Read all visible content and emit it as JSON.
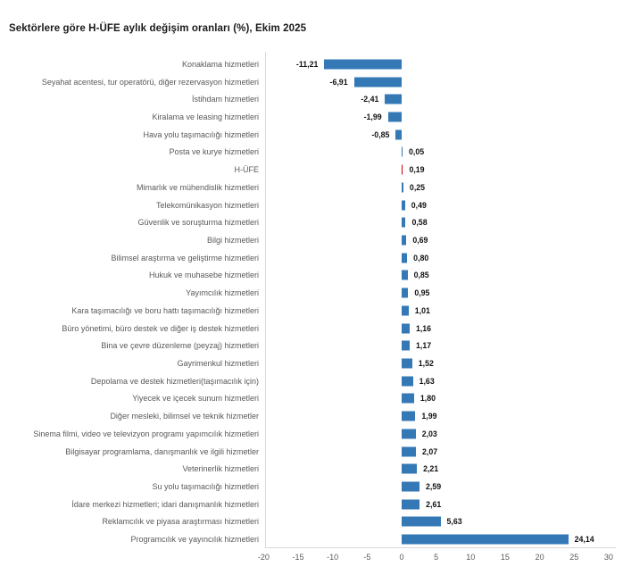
{
  "chart_data": {
    "type": "bar",
    "orientation": "horizontal",
    "title": "Sektörlere göre H-ÜFE aylık değişim oranları (%), Ekim 2025",
    "xlabel": "",
    "ylabel": "",
    "xlim": [
      -20,
      30
    ],
    "x_ticks": [
      -20,
      -15,
      -10,
      -5,
      0,
      5,
      10,
      15,
      20,
      25,
      30
    ],
    "grid": false,
    "legend": false,
    "categories": [
      "Konaklama hizmetleri",
      "Seyahat acentesi, tur operatörü, diğer rezervasyon hizmetleri",
      "İstihdam hizmetleri",
      "Kiralama ve leasing hizmetleri",
      "Hava yolu taşımacılığı hizmetleri",
      "Posta ve kurye hizmetleri",
      "H-ÜFE",
      "Mimarlık ve mühendislik hizmetleri",
      "Telekomünikasyon hizmetleri",
      "Güvenlik ve soruşturma hizmetleri",
      "Bilgi hizmetleri",
      "Bilimsel araştırma ve geliştirme hizmetleri",
      "Hukuk ve muhasebe hizmetleri",
      "Yayımcılık hizmetleri",
      "Kara taşımacılığı ve boru hattı taşımacılığı hizmetleri",
      "Büro yönetimi, büro destek ve diğer iş destek hizmetleri",
      "Bina ve çevre düzenleme (peyzaj) hizmetleri",
      "Gayrimenkul hizmetleri",
      "Depolama ve destek hizmetleri(taşımacılık için)",
      "Yiyecek ve içecek sunum hizmetleri",
      "Diğer mesleki, bilimsel ve teknik hizmetler",
      "Sinema filmi, video ve televizyon programı yapımcılık hizmetleri",
      "Bilgisayar programlama, danışmanlık ve ilgili hizmetler",
      "Veterinerlik hizmetleri",
      "Su yolu taşımacılığı hizmetleri",
      "İdare merkezi hizmetleri; idari danışmanlık hizmetleri",
      "Reklamcılık ve piyasa araştırması hizmetleri",
      "Programcılık ve yayıncılık hizmetleri"
    ],
    "values": [
      -11.21,
      -6.91,
      -2.41,
      -1.99,
      -0.85,
      0.05,
      0.19,
      0.25,
      0.49,
      0.58,
      0.69,
      0.8,
      0.85,
      0.95,
      1.01,
      1.16,
      1.17,
      1.52,
      1.63,
      1.8,
      1.99,
      2.03,
      2.07,
      2.21,
      2.59,
      2.61,
      5.63,
      24.14
    ],
    "value_labels": [
      "-11,21",
      "-6,91",
      "-2,41",
      "-1,99",
      "-0,85",
      "0,05",
      "0,19",
      "0,25",
      "0,49",
      "0,58",
      "0,69",
      "0,80",
      "0,85",
      "0,95",
      "1,01",
      "1,16",
      "1,17",
      "1,52",
      "1,63",
      "1,80",
      "1,99",
      "2,03",
      "2,07",
      "2,21",
      "2,59",
      "2,61",
      "5,63",
      "24,14"
    ],
    "highlight_category": "H-ÜFE",
    "highlight_index": 6,
    "colors": {
      "bar": "#3478b6",
      "highlight": "#cc0000",
      "axis_border": "#d9d9d9",
      "category_text": "#595959",
      "value_text": "#111111",
      "title_text": "#1a1a1a"
    }
  }
}
